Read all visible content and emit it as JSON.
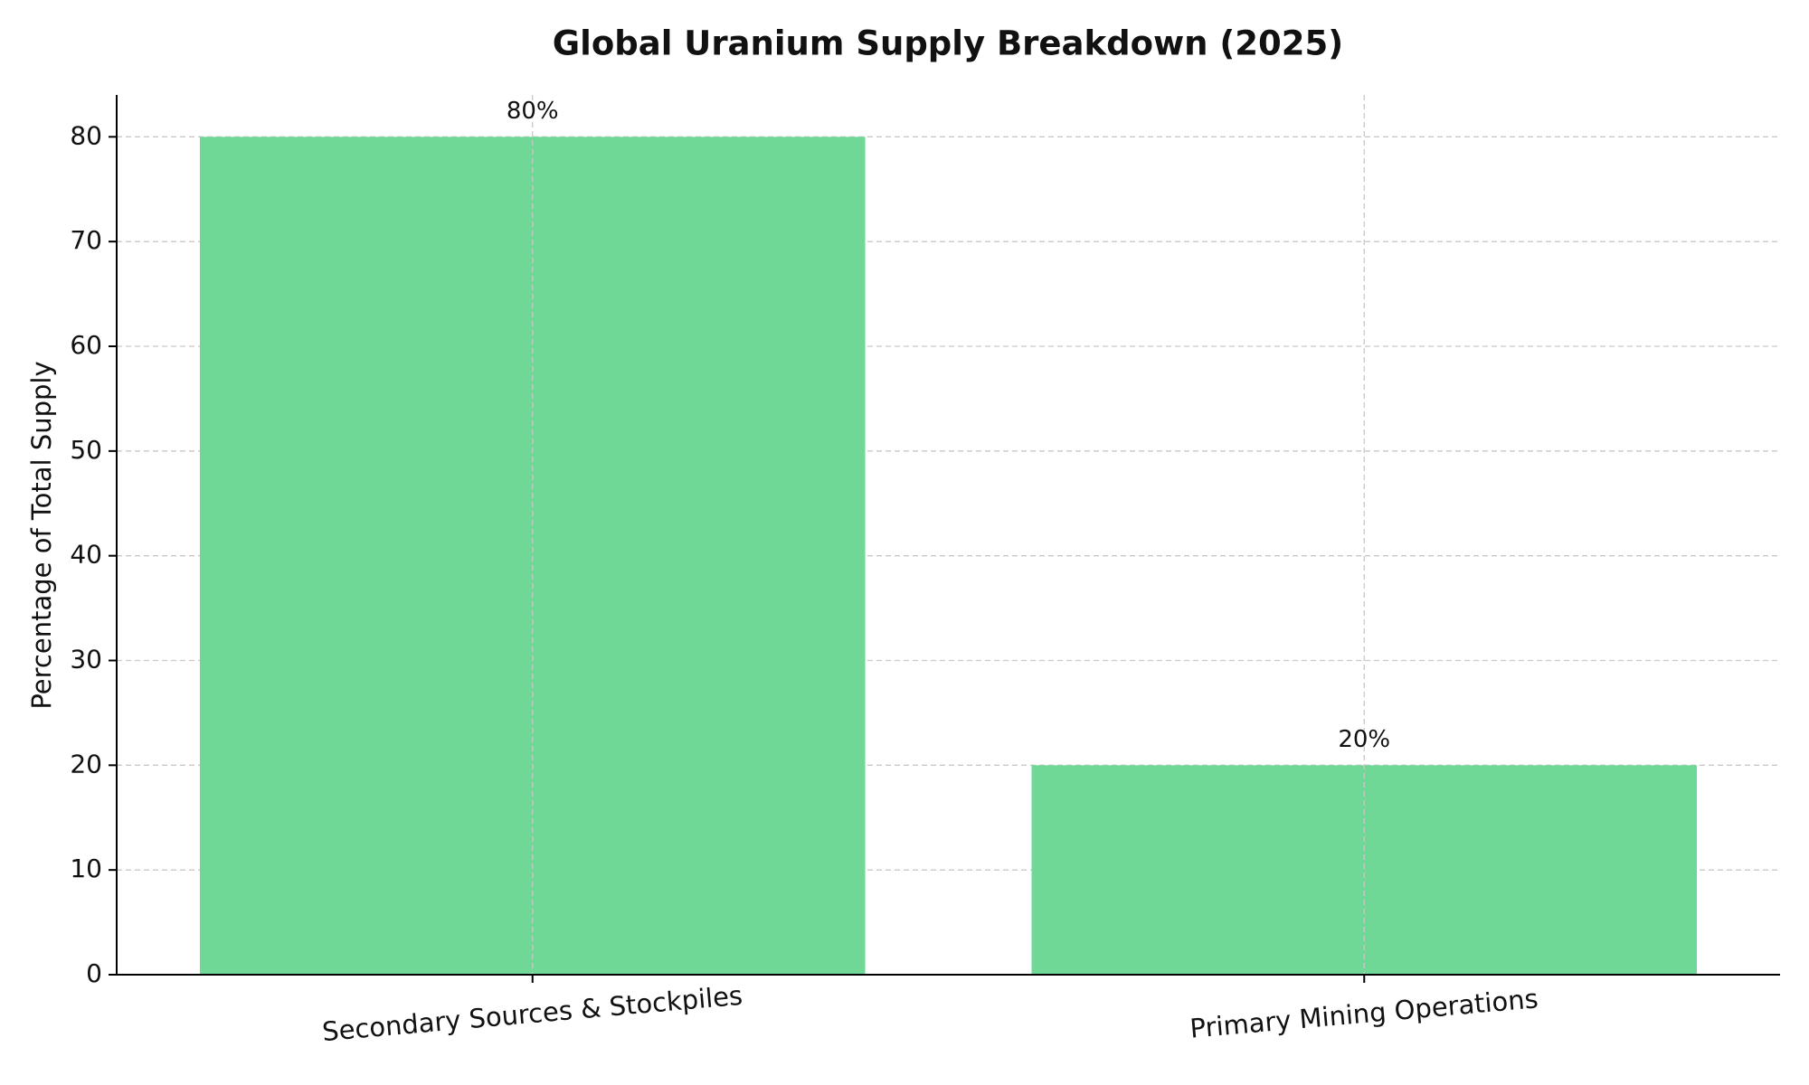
{
  "chart_data": {
    "type": "bar",
    "title": "Global Uranium Supply Breakdown (2025)",
    "y_label": "Percentage of Total Supply",
    "categories": [
      "Secondary Sources & Stockpiles",
      "Primary Mining Operations"
    ],
    "values": [
      80,
      20
    ],
    "value_labels": [
      "80%",
      "20%"
    ],
    "color": "#70d897",
    "ylim": [
      0,
      84
    ],
    "yticks": [
      0,
      10,
      20,
      30,
      40,
      50,
      60,
      70,
      80
    ],
    "grid": true
  }
}
